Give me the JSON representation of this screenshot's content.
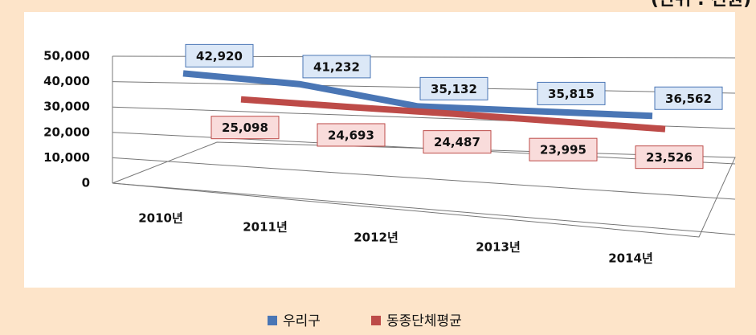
{
  "chart_data": {
    "type": "line",
    "subtitle": "(단위 : 천원)",
    "categories": [
      "2010년",
      "2011년",
      "2012년",
      "2013년",
      "2014년"
    ],
    "series": [
      {
        "name": "우리구",
        "color": "#4a76b5",
        "values": [
          42920,
          41232,
          35132,
          35815,
          36562
        ],
        "value_labels": [
          "42,920",
          "41,232",
          "35,132",
          "35,815",
          "36,562"
        ]
      },
      {
        "name": "동종단체평균",
        "color": "#bd4b48",
        "values": [
          25098,
          24693,
          24487,
          23995,
          23526
        ],
        "value_labels": [
          "25,098",
          "24,693",
          "24,487",
          "23,995",
          "23,526"
        ]
      }
    ],
    "ylim": [
      0,
      50000
    ],
    "yticks": [
      0,
      {
        "value": 10000,
        "label": "10,000"
      },
      {
        "value": 20000,
        "label": "20,000"
      },
      {
        "value": 30000,
        "label": "30,000"
      },
      {
        "value": 40000,
        "label": "40,000"
      },
      {
        "value": 50000,
        "label": "50,000"
      }
    ],
    "grid": true
  }
}
